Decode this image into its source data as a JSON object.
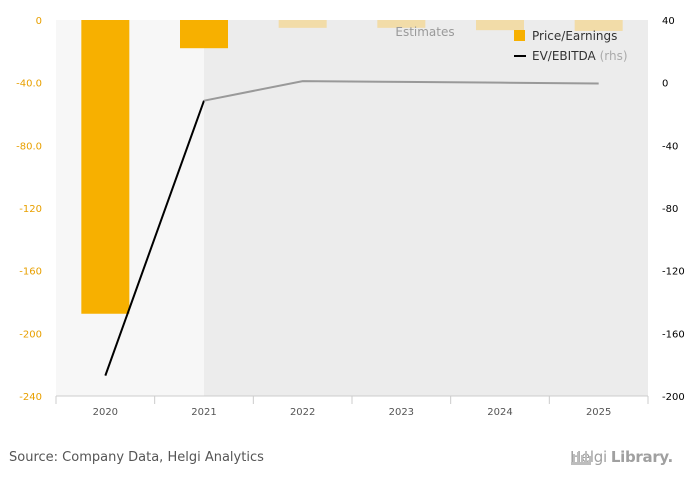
{
  "chart_data": {
    "type": "bar",
    "categories": [
      "2020",
      "2021",
      "2022",
      "2023",
      "2024",
      "2025"
    ],
    "series": [
      {
        "name": "Price/Earnings",
        "kind": "bar",
        "axis": "left",
        "color": "#F7B000",
        "estimate_color": "#F2DCA8",
        "values": [
          -187.5,
          -18,
          -5,
          -5,
          -6.5,
          -7
        ]
      },
      {
        "name": "EV/EBITDA",
        "name_suffix": "(rhs)",
        "kind": "line",
        "axis": "right",
        "color": "#000000",
        "estimate_color": "#999999",
        "values": [
          -187,
          -11.5,
          1,
          0.5,
          0,
          -0.5
        ]
      }
    ],
    "left_axis": {
      "ylim": [
        -240,
        0
      ],
      "ticks": [
        "0",
        "-40.0",
        "-80.0",
        "-120",
        "-160",
        "-200",
        "-240"
      ],
      "tick_values": [
        0,
        -40,
        -80,
        -120,
        -160,
        -200,
        -240
      ],
      "label_color": "#E8A000"
    },
    "right_axis": {
      "ylim": [
        -200,
        40
      ],
      "ticks": [
        "40",
        "0",
        "-40",
        "-80",
        "-120",
        "-160",
        "-200"
      ],
      "tick_values": [
        40,
        0,
        -40,
        -80,
        -120,
        -160,
        -200
      ],
      "label_color": "#000000"
    },
    "estimates_label": "Estimates",
    "estimates_start_index": 1,
    "legend_position": "top-right",
    "grid": true
  },
  "footer": {
    "source": "Source: Company Data, Helgi Analytics",
    "brand_light": "Helgi",
    "brand_bold": "Library."
  }
}
